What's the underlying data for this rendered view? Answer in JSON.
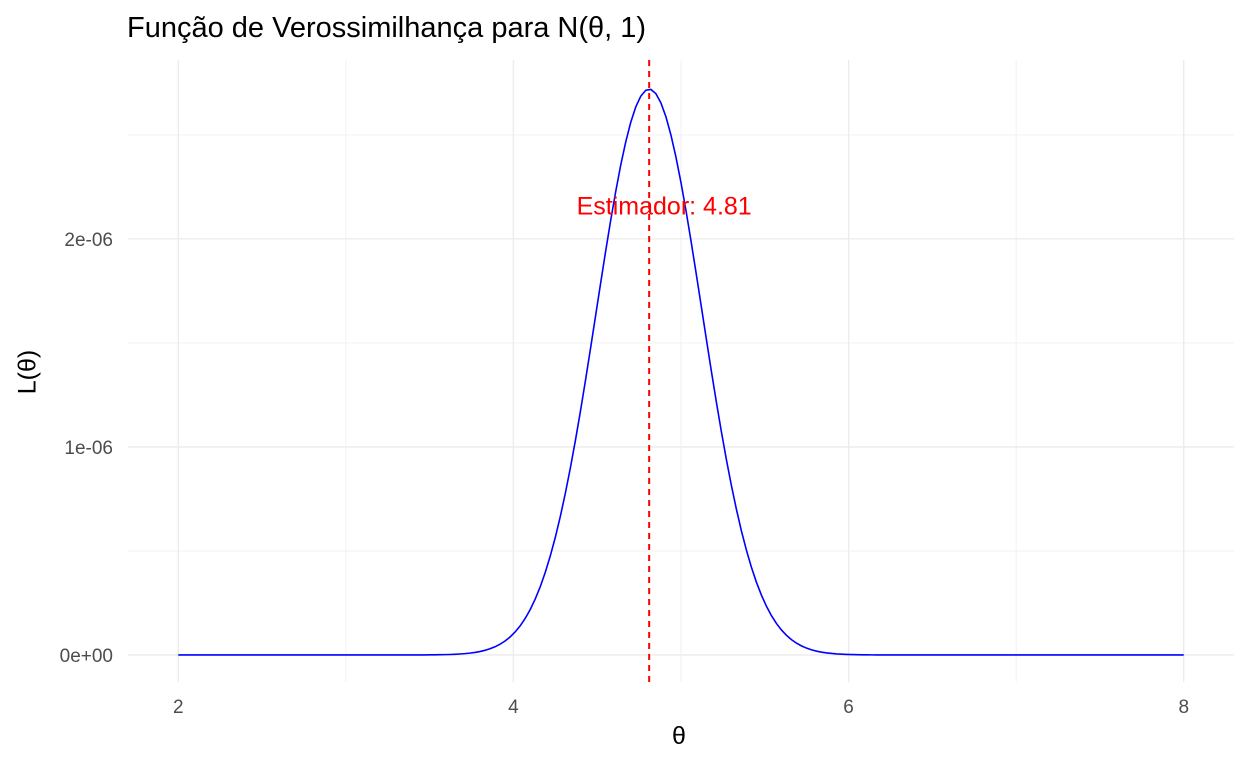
{
  "chart_data": {
    "type": "line",
    "title": "Função de Verossimilhança para N(θ, 1)",
    "xlabel": "θ",
    "ylabel": "L(θ)",
    "xlim": [
      1.7,
      8.3
    ],
    "ylim": [
      -1.3e-07,
      2.86e-06
    ],
    "x_ticks": [
      2,
      4,
      6,
      8
    ],
    "x_tick_labels": [
      "2",
      "4",
      "6",
      "8"
    ],
    "y_ticks": [
      0,
      1e-06,
      2e-06
    ],
    "y_tick_labels": [
      "0e+00",
      "1e-06",
      "2e-06"
    ],
    "grid": true,
    "series": [
      {
        "color": "#0000ff",
        "curve": "normal-likelihood",
        "peak_x": 4.81,
        "peak_y": 2.72e-06,
        "sd": 0.316,
        "x_start": 2,
        "x_end": 8
      }
    ],
    "annotations": [
      {
        "text": "Estimador:  4.81",
        "x": 4.81,
        "y": 2.16e-06,
        "color": "#ff0000"
      }
    ],
    "vline": {
      "x": 4.81,
      "color": "#ff0000",
      "style": "dashed"
    }
  }
}
